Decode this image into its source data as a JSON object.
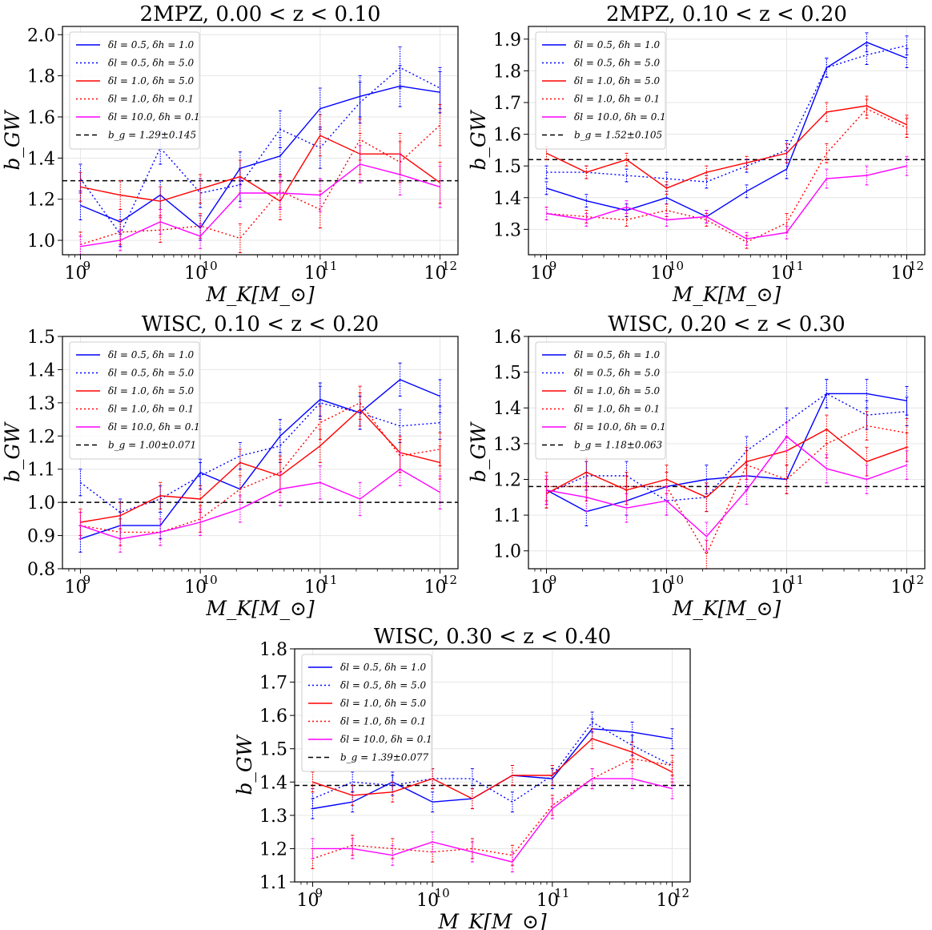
{
  "series_styles": [
    {
      "color": "#0000ff",
      "dash": ""
    },
    {
      "color": "#0000ff",
      "dash": "2,3"
    },
    {
      "color": "#ff0000",
      "dash": ""
    },
    {
      "color": "#ff0000",
      "dash": "2,3"
    },
    {
      "color": "#ff00ff",
      "dash": ""
    }
  ],
  "bg_line_style": {
    "color": "#000000",
    "dash": "6,4"
  },
  "chart_data": [
    {
      "type": "line",
      "title": "2MPZ, 0.00 < z < 0.10",
      "xlabel": "M_K[M_⊙]",
      "ylabel": "b_GW",
      "xscale": "log",
      "x": [
        1000000000.0,
        2150000000.0,
        4640000000.0,
        10000000000.0,
        21500000000.0,
        46400000000.0,
        100000000000.0,
        215000000000.0,
        464000000000.0,
        1000000000000.0
      ],
      "xticks": [
        "10",
        "10",
        "10",
        "10"
      ],
      "xtick_exponents": [
        "9",
        "10",
        "11",
        "12"
      ],
      "ylim": [
        0.93,
        2.04
      ],
      "yticks": [
        1.0,
        1.2,
        1.4,
        1.6,
        1.8,
        2.0
      ],
      "ytick_labels": [
        "1.0",
        "1.2",
        "1.4",
        "1.6",
        "1.8",
        "2.0"
      ],
      "grid": true,
      "legend": "upper-left",
      "series": [
        {
          "name": "δl = 0.5, δh = 1.0",
          "values": [
            1.17,
            1.09,
            1.22,
            1.06,
            1.35,
            1.41,
            1.64,
            1.7,
            1.75,
            1.72
          ],
          "err": [
            0.07,
            0.06,
            0.07,
            0.06,
            0.08,
            0.09,
            0.1,
            0.1,
            0.1,
            0.1
          ]
        },
        {
          "name": "δl = 0.5, δh = 5.0",
          "values": [
            1.3,
            1.03,
            1.45,
            1.23,
            1.27,
            1.54,
            1.45,
            1.67,
            1.84,
            1.74
          ],
          "err": [
            0.07,
            0.06,
            0.08,
            0.07,
            0.08,
            0.09,
            0.1,
            0.1,
            0.1,
            0.1
          ]
        },
        {
          "name": "δl = 1.0, δh = 5.0",
          "values": [
            1.26,
            1.22,
            1.19,
            1.25,
            1.31,
            1.19,
            1.51,
            1.42,
            1.42,
            1.28
          ],
          "err": [
            0.07,
            0.07,
            0.07,
            0.07,
            0.08,
            0.09,
            0.1,
            0.1,
            0.1,
            0.1
          ]
        },
        {
          "name": "δl = 1.0, δh = 0.1",
          "values": [
            0.98,
            1.04,
            1.05,
            1.07,
            1.01,
            1.24,
            1.15,
            1.49,
            1.38,
            1.56
          ],
          "err": [
            0.06,
            0.06,
            0.06,
            0.06,
            0.07,
            0.08,
            0.09,
            0.1,
            0.1,
            0.1
          ]
        },
        {
          "name": "δl = 10.0, δh = 0.1",
          "values": [
            0.97,
            1.0,
            1.09,
            1.02,
            1.23,
            1.23,
            1.22,
            1.37,
            1.32,
            1.26
          ],
          "err": [
            0.05,
            0.05,
            0.06,
            0.06,
            0.07,
            0.08,
            0.08,
            0.09,
            0.1,
            0.1
          ]
        }
      ],
      "bg_line": {
        "label": "b_g = 1.29±0.145",
        "value": 1.29
      }
    },
    {
      "type": "line",
      "title": "2MPZ, 0.10 < z < 0.20",
      "xlabel": "M_K[M_⊙]",
      "ylabel": "b_GW",
      "xscale": "log",
      "x": [
        1000000000.0,
        2150000000.0,
        4640000000.0,
        10000000000.0,
        21500000000.0,
        46400000000.0,
        100000000000.0,
        215000000000.0,
        464000000000.0,
        1000000000000.0
      ],
      "xticks": [
        "10",
        "10",
        "10",
        "10"
      ],
      "xtick_exponents": [
        "9",
        "10",
        "11",
        "12"
      ],
      "ylim": [
        1.22,
        1.94
      ],
      "yticks": [
        1.3,
        1.4,
        1.5,
        1.6,
        1.7,
        1.8,
        1.9
      ],
      "ytick_labels": [
        "1.3",
        "1.4",
        "1.5",
        "1.6",
        "1.7",
        "1.8",
        "1.9"
      ],
      "grid": true,
      "legend": "upper-left",
      "series": [
        {
          "name": "δl = 0.5, δh = 1.0",
          "values": [
            1.43,
            1.39,
            1.36,
            1.4,
            1.34,
            1.42,
            1.49,
            1.81,
            1.89,
            1.84
          ],
          "err": [
            0.02,
            0.02,
            0.02,
            0.02,
            0.02,
            0.02,
            0.03,
            0.03,
            0.03,
            0.03
          ]
        },
        {
          "name": "δl = 0.5, δh = 5.0",
          "values": [
            1.48,
            1.48,
            1.47,
            1.46,
            1.45,
            1.5,
            1.55,
            1.81,
            1.85,
            1.88
          ],
          "err": [
            0.02,
            0.02,
            0.02,
            0.02,
            0.02,
            0.02,
            0.03,
            0.03,
            0.03,
            0.03
          ]
        },
        {
          "name": "δl = 1.0, δh = 5.0",
          "values": [
            1.54,
            1.48,
            1.52,
            1.43,
            1.48,
            1.51,
            1.54,
            1.67,
            1.69,
            1.63
          ],
          "err": [
            0.02,
            0.02,
            0.02,
            0.02,
            0.02,
            0.02,
            0.03,
            0.03,
            0.03,
            0.03
          ]
        },
        {
          "name": "δl = 1.0, δh = 0.1",
          "values": [
            1.35,
            1.34,
            1.33,
            1.36,
            1.33,
            1.26,
            1.32,
            1.54,
            1.68,
            1.62
          ],
          "err": [
            0.02,
            0.02,
            0.02,
            0.02,
            0.02,
            0.02,
            0.03,
            0.03,
            0.03,
            0.03
          ]
        },
        {
          "name": "δl = 10.0, δh = 0.1",
          "values": [
            1.35,
            1.33,
            1.37,
            1.33,
            1.34,
            1.27,
            1.29,
            1.46,
            1.47,
            1.5
          ],
          "err": [
            0.02,
            0.02,
            0.02,
            0.02,
            0.02,
            0.02,
            0.02,
            0.03,
            0.03,
            0.03
          ]
        }
      ],
      "bg_line": {
        "label": "b_g = 1.52±0.105",
        "value": 1.52
      }
    },
    {
      "type": "line",
      "title": "WISC, 0.10 < z < 0.20",
      "xlabel": "M_K[M_⊙]",
      "ylabel": "b_GW",
      "xscale": "log",
      "x": [
        1000000000.0,
        2150000000.0,
        4640000000.0,
        10000000000.0,
        21500000000.0,
        46400000000.0,
        100000000000.0,
        215000000000.0,
        464000000000.0,
        1000000000000.0
      ],
      "xticks": [
        "10",
        "10",
        "10",
        "10"
      ],
      "xtick_exponents": [
        "9",
        "10",
        "11",
        "12"
      ],
      "ylim": [
        0.8,
        1.5
      ],
      "yticks": [
        0.8,
        0.9,
        1.0,
        1.1,
        1.2,
        1.3,
        1.4,
        1.5
      ],
      "ytick_labels": [
        "0.8",
        "0.9",
        "1.0",
        "1.1",
        "1.2",
        "1.3",
        "1.4",
        "1.5"
      ],
      "grid": true,
      "legend": "upper-left",
      "series": [
        {
          "name": "δl = 0.5, δh = 1.0",
          "values": [
            0.89,
            0.93,
            0.93,
            1.09,
            1.04,
            1.2,
            1.31,
            1.27,
            1.37,
            1.32
          ],
          "err": [
            0.04,
            0.04,
            0.04,
            0.04,
            0.04,
            0.05,
            0.05,
            0.05,
            0.05,
            0.05
          ]
        },
        {
          "name": "δl = 0.5, δh = 5.0",
          "values": [
            1.06,
            0.97,
            1.01,
            1.08,
            1.14,
            1.17,
            1.3,
            1.27,
            1.23,
            1.24
          ],
          "err": [
            0.04,
            0.04,
            0.04,
            0.04,
            0.04,
            0.05,
            0.05,
            0.05,
            0.05,
            0.05
          ]
        },
        {
          "name": "δl = 1.0, δh = 5.0",
          "values": [
            0.94,
            0.96,
            1.02,
            1.01,
            1.12,
            1.08,
            1.17,
            1.28,
            1.15,
            1.12
          ],
          "err": [
            0.04,
            0.04,
            0.04,
            0.04,
            0.04,
            0.05,
            0.05,
            0.05,
            0.05,
            0.05
          ]
        },
        {
          "name": "δl = 1.0, δh = 0.1",
          "values": [
            0.93,
            0.91,
            0.91,
            0.95,
            1.04,
            1.09,
            1.24,
            1.3,
            1.14,
            1.16
          ],
          "err": [
            0.04,
            0.04,
            0.04,
            0.04,
            0.04,
            0.05,
            0.05,
            0.05,
            0.05,
            0.05
          ]
        },
        {
          "name": "δl = 10.0, δh = 0.1",
          "values": [
            0.93,
            0.89,
            0.91,
            0.94,
            0.98,
            1.04,
            1.06,
            1.01,
            1.1,
            1.03
          ],
          "err": [
            0.04,
            0.04,
            0.04,
            0.04,
            0.04,
            0.05,
            0.05,
            0.05,
            0.05,
            0.05
          ]
        }
      ],
      "bg_line": {
        "label": "b_g = 1.00±0.071",
        "value": 1.0
      }
    },
    {
      "type": "line",
      "title": "WISC, 0.20 < z < 0.30",
      "xlabel": "M_K[M_⊙]",
      "ylabel": "b_GW",
      "xscale": "log",
      "x": [
        1000000000.0,
        2150000000.0,
        4640000000.0,
        10000000000.0,
        21500000000.0,
        46400000000.0,
        100000000000.0,
        215000000000.0,
        464000000000.0,
        1000000000000.0
      ],
      "xticks": [
        "10",
        "10",
        "10",
        "10"
      ],
      "xtick_exponents": [
        "9",
        "10",
        "11",
        "12"
      ],
      "ylim": [
        0.95,
        1.6
      ],
      "yticks": [
        1.0,
        1.1,
        1.2,
        1.3,
        1.4,
        1.5,
        1.6
      ],
      "ytick_labels": [
        "1.0",
        "1.1",
        "1.2",
        "1.3",
        "1.4",
        "1.5",
        "1.6"
      ],
      "grid": true,
      "legend": "upper-left",
      "series": [
        {
          "name": "δl = 0.5, δh = 1.0",
          "values": [
            1.17,
            1.11,
            1.14,
            1.18,
            1.2,
            1.21,
            1.2,
            1.44,
            1.44,
            1.42
          ],
          "err": [
            0.04,
            0.04,
            0.04,
            0.04,
            0.04,
            0.04,
            0.04,
            0.04,
            0.04,
            0.04
          ]
        },
        {
          "name": "δl = 0.5, δh = 5.0",
          "values": [
            1.16,
            1.21,
            1.21,
            1.14,
            1.15,
            1.28,
            1.36,
            1.44,
            1.38,
            1.39
          ],
          "err": [
            0.04,
            0.04,
            0.04,
            0.04,
            0.04,
            0.04,
            0.04,
            0.04,
            0.04,
            0.04
          ]
        },
        {
          "name": "δl = 1.0, δh = 5.0",
          "values": [
            1.16,
            1.22,
            1.17,
            1.2,
            1.15,
            1.25,
            1.28,
            1.34,
            1.25,
            1.29
          ],
          "err": [
            0.04,
            0.04,
            0.04,
            0.04,
            0.04,
            0.04,
            0.04,
            0.04,
            0.04,
            0.04
          ]
        },
        {
          "name": "δl = 1.0, δh = 0.1",
          "values": [
            1.18,
            1.18,
            1.18,
            1.18,
            0.99,
            1.24,
            1.2,
            1.3,
            1.35,
            1.33
          ],
          "err": [
            0.04,
            0.04,
            0.04,
            0.04,
            0.04,
            0.04,
            0.04,
            0.04,
            0.04,
            0.04
          ]
        },
        {
          "name": "δl = 10.0, δh = 0.1",
          "values": [
            1.17,
            1.15,
            1.12,
            1.14,
            1.04,
            1.17,
            1.32,
            1.23,
            1.2,
            1.24
          ],
          "err": [
            0.04,
            0.04,
            0.04,
            0.04,
            0.04,
            0.04,
            0.04,
            0.04,
            0.04,
            0.04
          ]
        }
      ],
      "bg_line": {
        "label": "b_g = 1.18±0.063",
        "value": 1.18
      }
    },
    {
      "type": "line",
      "title": "WISC, 0.30 < z < 0.40",
      "xlabel": "M_K[M_⊙]",
      "ylabel": "b_GW",
      "xscale": "log",
      "x": [
        1000000000.0,
        2150000000.0,
        4640000000.0,
        10000000000.0,
        21500000000.0,
        46400000000.0,
        100000000000.0,
        215000000000.0,
        464000000000.0,
        1000000000000.0
      ],
      "xticks": [
        "10",
        "10",
        "10",
        "10"
      ],
      "xtick_exponents": [
        "9",
        "10",
        "11",
        "12"
      ],
      "ylim": [
        1.1,
        1.8
      ],
      "yticks": [
        1.1,
        1.2,
        1.3,
        1.4,
        1.5,
        1.6,
        1.7,
        1.8
      ],
      "ytick_labels": [
        "1.1",
        "1.2",
        "1.3",
        "1.4",
        "1.5",
        "1.6",
        "1.7",
        "1.8"
      ],
      "grid": true,
      "legend": "upper-left",
      "series": [
        {
          "name": "δl = 0.5, δh = 1.0",
          "values": [
            1.32,
            1.34,
            1.4,
            1.34,
            1.35,
            1.42,
            1.41,
            1.56,
            1.55,
            1.53
          ],
          "err": [
            0.03,
            0.03,
            0.03,
            0.03,
            0.03,
            0.03,
            0.03,
            0.03,
            0.03,
            0.03
          ]
        },
        {
          "name": "δl = 0.5, δh = 5.0",
          "values": [
            1.35,
            1.4,
            1.39,
            1.41,
            1.41,
            1.34,
            1.42,
            1.58,
            1.51,
            1.45
          ],
          "err": [
            0.03,
            0.03,
            0.03,
            0.03,
            0.03,
            0.03,
            0.03,
            0.03,
            0.03,
            0.03
          ]
        },
        {
          "name": "δl = 1.0, δh = 5.0",
          "values": [
            1.4,
            1.36,
            1.37,
            1.41,
            1.35,
            1.42,
            1.42,
            1.53,
            1.49,
            1.43
          ],
          "err": [
            0.03,
            0.03,
            0.03,
            0.03,
            0.03,
            0.03,
            0.03,
            0.03,
            0.03,
            0.03
          ]
        },
        {
          "name": "δl = 1.0, δh = 0.1",
          "values": [
            1.17,
            1.21,
            1.2,
            1.19,
            1.2,
            1.18,
            1.33,
            1.41,
            1.47,
            1.45
          ],
          "err": [
            0.03,
            0.03,
            0.03,
            0.03,
            0.03,
            0.03,
            0.03,
            0.03,
            0.03,
            0.03
          ]
        },
        {
          "name": "δl = 10.0, δh = 0.1",
          "values": [
            1.2,
            1.2,
            1.18,
            1.22,
            1.19,
            1.16,
            1.32,
            1.41,
            1.41,
            1.38
          ],
          "err": [
            0.03,
            0.03,
            0.03,
            0.03,
            0.03,
            0.03,
            0.03,
            0.03,
            0.03,
            0.03
          ]
        }
      ],
      "bg_line": {
        "label": "b_g = 1.39±0.077",
        "value": 1.39
      }
    }
  ]
}
